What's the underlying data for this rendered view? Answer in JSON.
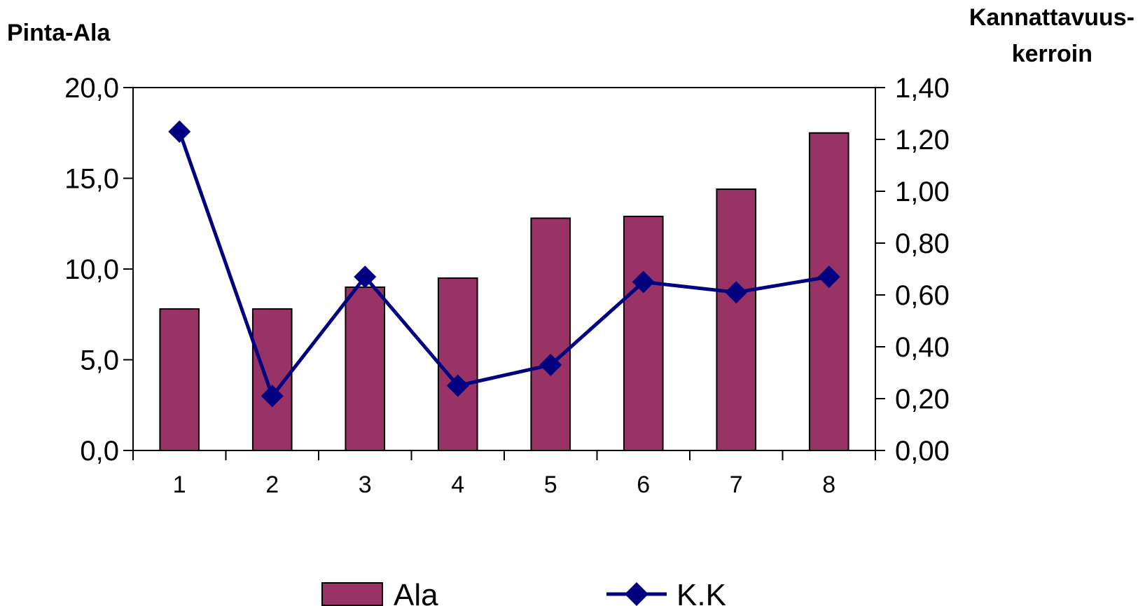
{
  "chart_data": {
    "type": "bar",
    "categories": [
      "1",
      "2",
      "3",
      "4",
      "5",
      "6",
      "7",
      "8"
    ],
    "y_left": {
      "label": "Pinta-Ala",
      "ticks": [
        "0,0",
        "5,0",
        "10,0",
        "15,0",
        "20,0"
      ],
      "lim": [
        0,
        20
      ]
    },
    "y_right": {
      "label_line1": "Kannattavuus-",
      "label_line2": "kerroin",
      "ticks": [
        "0,00",
        "0,20",
        "0,40",
        "0,60",
        "0,80",
        "1,00",
        "1,20",
        "1,40"
      ],
      "lim": [
        0,
        1.4
      ]
    },
    "series": [
      {
        "name": "Ala",
        "type": "bar",
        "axis": "left",
        "color": "#993366",
        "values": [
          7.8,
          7.8,
          9.0,
          9.5,
          12.8,
          12.9,
          14.4,
          17.5
        ]
      },
      {
        "name": "K.K",
        "type": "line",
        "axis": "right",
        "color": "#000080",
        "marker": "diamond",
        "values": [
          1.23,
          0.21,
          0.67,
          0.25,
          0.33,
          0.65,
          0.61,
          0.67
        ]
      }
    ],
    "legend_position": "bottom",
    "grid": false
  }
}
